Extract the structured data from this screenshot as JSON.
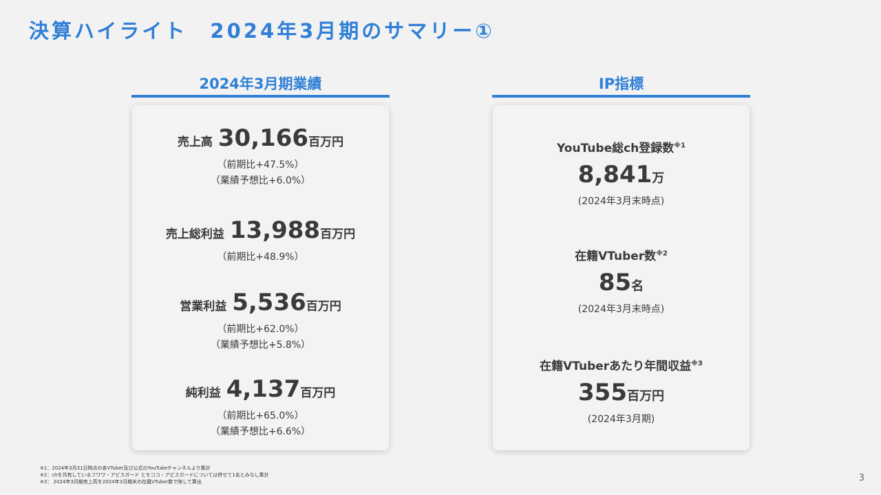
{
  "title": "決算ハイライト　2024年3月期のサマリー①",
  "left": {
    "heading": "2024年3月期業績",
    "items": [
      {
        "label": "売上高",
        "value": "30,166",
        "unit": "百万円",
        "subs": [
          "（前期比+47.5%）",
          "（業績予想比+6.0%）"
        ]
      },
      {
        "label": "売上総利益",
        "value": "13,988",
        "unit": "百万円",
        "subs": [
          "（前期比+48.9%）"
        ]
      },
      {
        "label": "営業利益",
        "value": "5,536",
        "unit": "百万円",
        "subs": [
          "（前期比+62.0%）",
          "（業績予想比+5.8%）"
        ]
      },
      {
        "label": "純利益",
        "value": "4,137",
        "unit": "百万円",
        "subs": [
          "（前期比+65.0%）",
          "（業績予想比+6.6%）"
        ]
      }
    ]
  },
  "right": {
    "heading": "IP指標",
    "items": [
      {
        "label": "YouTube総ch登録数",
        "note": "※1",
        "value": "8,841",
        "unit": "万",
        "sub": "(2024年3月末時点)"
      },
      {
        "label": "在籍VTuber数",
        "note": "※2",
        "value": "85",
        "unit": "名",
        "sub": "(2024年3月末時点)"
      },
      {
        "label": "在籍VTuberあたり年間収益",
        "note": "※3",
        "value": "355",
        "unit": "百万円",
        "sub": "(2024年3月期)"
      }
    ]
  },
  "footnotes": [
    "※1：2024年3月31日時点の各VTuber及び公式のYouTubeチャンネルより集計",
    "※2：chを共有しているフワワ・アビスガード とモココ・アビスガードについては併せて1名とみなし集計",
    "※3： 2024年3月期売上高を2024年3月期末の在籍VTuber数で除して算出"
  ],
  "page": "3",
  "colors": {
    "accent": "#2f7fd6"
  }
}
